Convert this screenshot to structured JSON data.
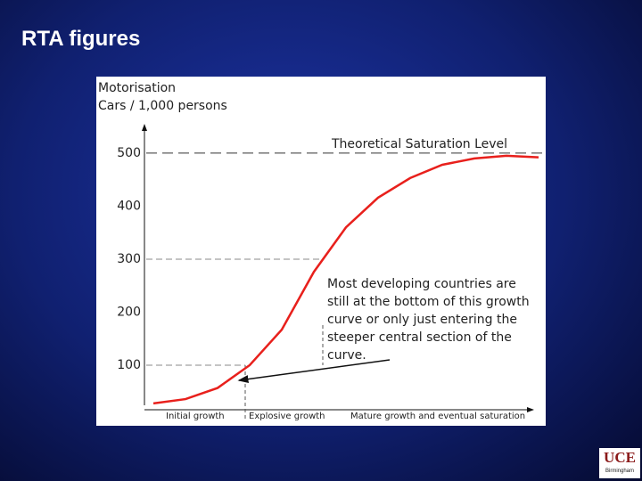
{
  "slide_title": "RTA figures",
  "chart_data": {
    "type": "line",
    "y_label_lines": [
      "Motorisation",
      "Cars / 1,000 persons"
    ],
    "categories": [
      null,
      null,
      null,
      null,
      null,
      null,
      null,
      null,
      null,
      null,
      null,
      null,
      null
    ],
    "values": [
      28,
      36,
      57,
      100,
      167,
      276,
      360,
      416,
      453,
      478,
      490,
      495,
      492
    ],
    "color": "#e8201c",
    "ylim": [
      20,
      520
    ],
    "yticks": [
      100,
      200,
      300,
      400,
      500
    ],
    "saturation_label": "Theoretical Saturation Level",
    "annotation_lines": [
      "Most developing countries are",
      "still at the bottom of this growth",
      "curve or only just entering the",
      "steeper central section of the",
      "curve."
    ],
    "phases": [
      "Initial growth",
      "Explosive growth",
      "Mature growth and eventual saturation"
    ]
  },
  "logo": {
    "text": "UCE",
    "subtext": "Birmingham"
  }
}
